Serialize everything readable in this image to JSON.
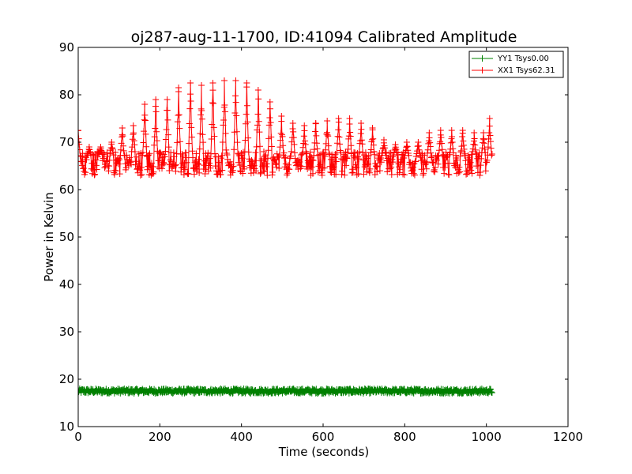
{
  "chart_data": {
    "type": "line",
    "title": "oj287-aug-11-1700, ID:41094 Calibrated Amplitude",
    "xlabel": "Time (seconds)",
    "ylabel": "Power in Kelvin",
    "xlim": [
      0,
      1200
    ],
    "ylim": [
      10,
      90
    ],
    "x_ticks": [
      0,
      200,
      400,
      600,
      800,
      1000,
      1200
    ],
    "y_ticks": [
      10,
      20,
      30,
      40,
      50,
      60,
      70,
      80,
      90
    ],
    "x_tick_labels": [
      "0",
      "200",
      "400",
      "600",
      "800",
      "1000",
      "1200"
    ],
    "y_tick_labels": [
      "10",
      "20",
      "30",
      "40",
      "50",
      "60",
      "70",
      "80",
      "90"
    ],
    "grid": false,
    "legend_position": "top-right",
    "marker": "+",
    "series": [
      {
        "name": "YY1 Tsys0.00",
        "color": "#008000",
        "baseline": 17.5,
        "spread": [
          17.0,
          18.0
        ],
        "x_range": [
          0,
          1015
        ]
      },
      {
        "name": "XX1 Tsys62.31",
        "color": "#ff0000",
        "baseline": 65,
        "spread": [
          63,
          68
        ],
        "x_range": [
          0,
          1015
        ],
        "peaks": [
          {
            "x": 0,
            "y": 72.5
          },
          {
            "x": 27,
            "y": 69
          },
          {
            "x": 55,
            "y": 69
          },
          {
            "x": 82,
            "y": 70
          },
          {
            "x": 108,
            "y": 73
          },
          {
            "x": 135,
            "y": 73.5
          },
          {
            "x": 163,
            "y": 78
          },
          {
            "x": 190,
            "y": 79
          },
          {
            "x": 218,
            "y": 79
          },
          {
            "x": 246,
            "y": 81.5
          },
          {
            "x": 275,
            "y": 82.5
          },
          {
            "x": 302,
            "y": 82
          },
          {
            "x": 330,
            "y": 82.5
          },
          {
            "x": 358,
            "y": 83
          },
          {
            "x": 386,
            "y": 83
          },
          {
            "x": 413,
            "y": 82.5
          },
          {
            "x": 441,
            "y": 81
          },
          {
            "x": 470,
            "y": 78.5
          },
          {
            "x": 498,
            "y": 75.5
          },
          {
            "x": 526,
            "y": 74
          },
          {
            "x": 554,
            "y": 73.5
          },
          {
            "x": 582,
            "y": 74
          },
          {
            "x": 610,
            "y": 74.5
          },
          {
            "x": 638,
            "y": 75
          },
          {
            "x": 665,
            "y": 75
          },
          {
            "x": 693,
            "y": 74
          },
          {
            "x": 721,
            "y": 73
          },
          {
            "x": 749,
            "y": 70.5
          },
          {
            "x": 777,
            "y": 69.5
          },
          {
            "x": 805,
            "y": 70
          },
          {
            "x": 833,
            "y": 70
          },
          {
            "x": 860,
            "y": 72
          },
          {
            "x": 888,
            "y": 72.5
          },
          {
            "x": 915,
            "y": 72.5
          },
          {
            "x": 942,
            "y": 72.5
          },
          {
            "x": 970,
            "y": 72
          },
          {
            "x": 993,
            "y": 72
          },
          {
            "x": 1008,
            "y": 75
          }
        ]
      }
    ]
  }
}
